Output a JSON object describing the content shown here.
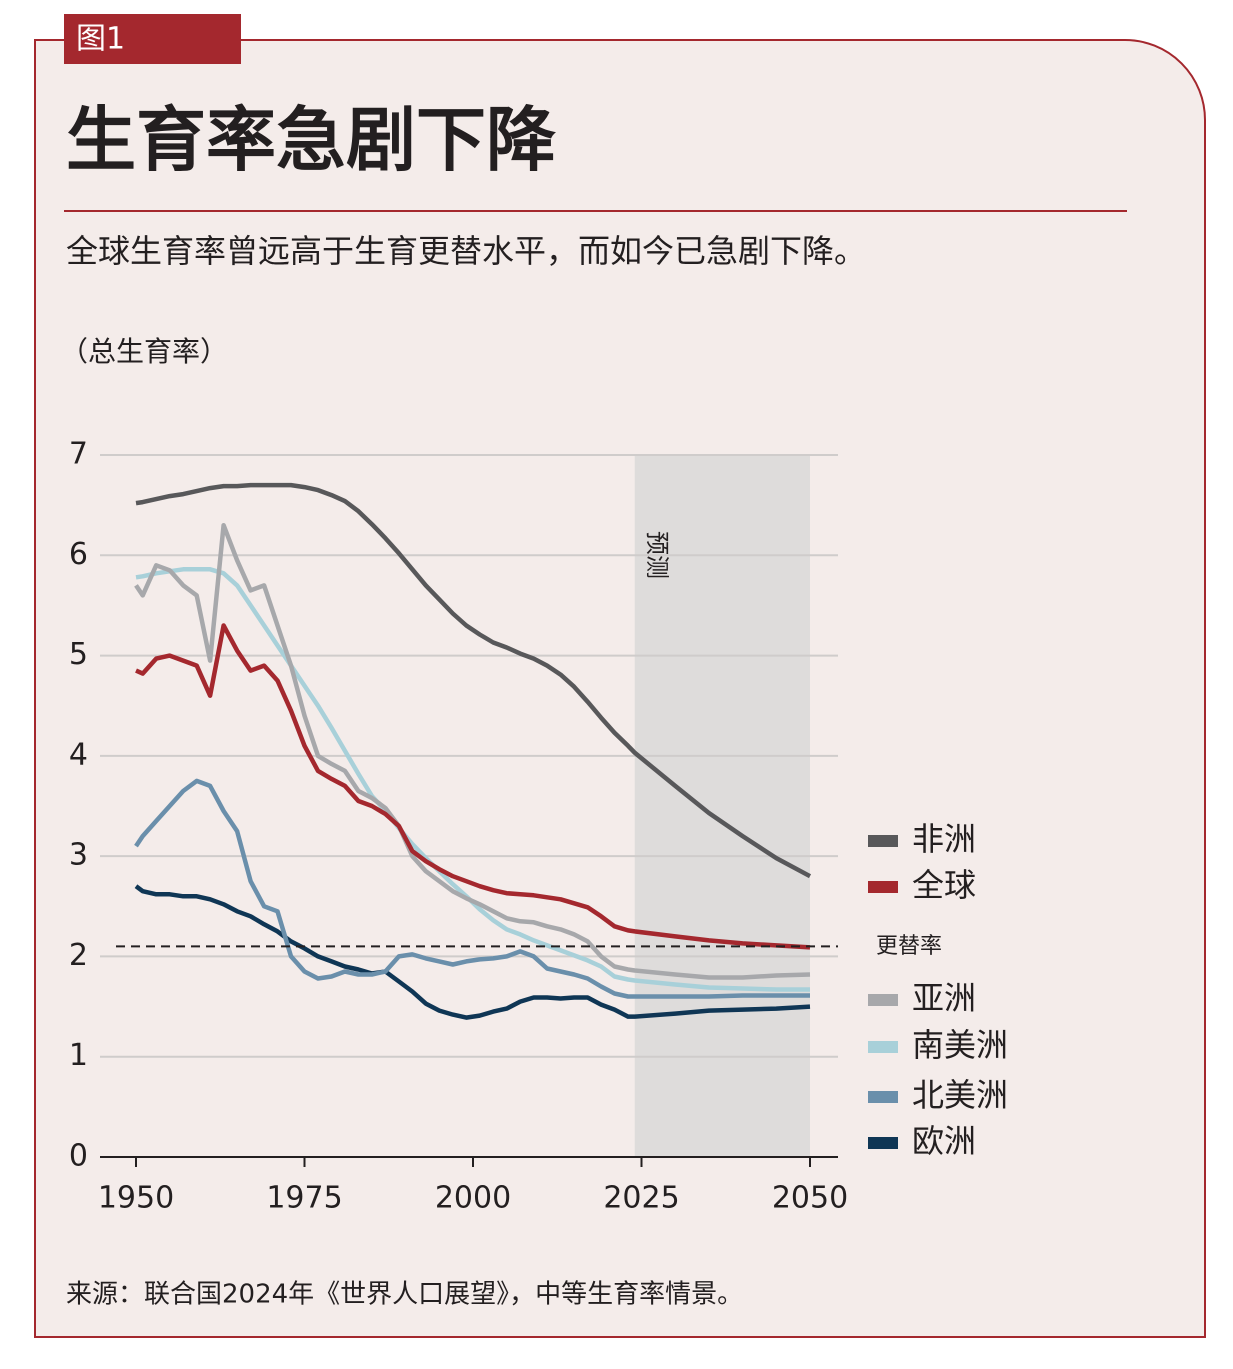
{
  "figure_tag": "图1",
  "chart_data": {
    "type": "line",
    "title": "生育率急剧下降",
    "subtitle": "全球生育率曾远高于生育更替水平，而如今已急剧下降。",
    "y_label": "（总生育率）",
    "source": "来源：联合国2024年《世界人口展望》，中等生育率情景。",
    "x": [
      1950,
      1951,
      1953,
      1955,
      1957,
      1959,
      1961,
      1963,
      1965,
      1967,
      1969,
      1971,
      1973,
      1975,
      1977,
      1979,
      1981,
      1983,
      1985,
      1987,
      1989,
      1991,
      1993,
      1995,
      1997,
      1999,
      2001,
      2003,
      2005,
      2007,
      2009,
      2011,
      2013,
      2015,
      2017,
      2019,
      2021,
      2023,
      2024,
      2030,
      2035,
      2040,
      2045,
      2050
    ],
    "series": [
      {
        "name": "非洲",
        "color": "#58585a",
        "values": [
          6.52,
          6.53,
          6.56,
          6.59,
          6.61,
          6.64,
          6.67,
          6.69,
          6.69,
          6.7,
          6.7,
          6.7,
          6.7,
          6.68,
          6.65,
          6.6,
          6.54,
          6.44,
          6.31,
          6.17,
          6.02,
          5.86,
          5.7,
          5.56,
          5.42,
          5.3,
          5.21,
          5.13,
          5.08,
          5.02,
          4.97,
          4.9,
          4.81,
          4.69,
          4.54,
          4.38,
          4.23,
          4.1,
          4.03,
          3.7,
          3.43,
          3.2,
          2.98,
          2.8
        ]
      },
      {
        "name": "全球",
        "color": "#a4282e",
        "values": [
          4.85,
          4.82,
          4.97,
          5.0,
          4.95,
          4.9,
          4.6,
          5.3,
          5.05,
          4.85,
          4.9,
          4.75,
          4.45,
          4.1,
          3.85,
          3.77,
          3.7,
          3.55,
          3.5,
          3.42,
          3.3,
          3.05,
          2.95,
          2.87,
          2.8,
          2.75,
          2.7,
          2.66,
          2.63,
          2.62,
          2.61,
          2.59,
          2.57,
          2.53,
          2.49,
          2.4,
          2.3,
          2.26,
          2.25,
          2.2,
          2.16,
          2.13,
          2.11,
          2.09
        ]
      },
      {
        "name": "亚洲",
        "color": "#a7a8ab",
        "values": [
          5.7,
          5.6,
          5.9,
          5.85,
          5.7,
          5.6,
          4.95,
          6.3,
          5.95,
          5.65,
          5.7,
          5.3,
          4.9,
          4.4,
          4.0,
          3.92,
          3.85,
          3.65,
          3.58,
          3.48,
          3.3,
          3.0,
          2.85,
          2.75,
          2.65,
          2.58,
          2.52,
          2.45,
          2.38,
          2.35,
          2.34,
          2.3,
          2.27,
          2.22,
          2.15,
          2.0,
          1.9,
          1.87,
          1.86,
          1.82,
          1.79,
          1.79,
          1.81,
          1.82
        ]
      },
      {
        "name": "南美洲",
        "color": "#a8d0d9",
        "values": [
          5.78,
          5.79,
          5.82,
          5.84,
          5.86,
          5.86,
          5.86,
          5.82,
          5.7,
          5.5,
          5.3,
          5.1,
          4.9,
          4.7,
          4.5,
          4.28,
          4.05,
          3.82,
          3.6,
          3.45,
          3.28,
          3.12,
          2.98,
          2.85,
          2.72,
          2.6,
          2.47,
          2.36,
          2.27,
          2.22,
          2.16,
          2.11,
          2.06,
          2.01,
          1.96,
          1.9,
          1.8,
          1.77,
          1.76,
          1.72,
          1.69,
          1.68,
          1.67,
          1.67
        ]
      },
      {
        "name": "北美洲",
        "color": "#6a8fab",
        "values": [
          3.1,
          3.2,
          3.35,
          3.5,
          3.65,
          3.75,
          3.7,
          3.45,
          3.25,
          2.75,
          2.5,
          2.45,
          2.0,
          1.85,
          1.78,
          1.8,
          1.85,
          1.82,
          1.82,
          1.85,
          2.0,
          2.02,
          1.98,
          1.95,
          1.92,
          1.95,
          1.97,
          1.98,
          2.0,
          2.05,
          2.0,
          1.88,
          1.85,
          1.82,
          1.78,
          1.7,
          1.63,
          1.6,
          1.6,
          1.6,
          1.6,
          1.61,
          1.61,
          1.61
        ]
      },
      {
        "name": "欧洲",
        "color": "#0f3655",
        "values": [
          2.7,
          2.65,
          2.62,
          2.62,
          2.6,
          2.6,
          2.57,
          2.52,
          2.45,
          2.4,
          2.32,
          2.25,
          2.15,
          2.08,
          2.0,
          1.95,
          1.9,
          1.87,
          1.83,
          1.85,
          1.75,
          1.65,
          1.53,
          1.46,
          1.42,
          1.39,
          1.41,
          1.45,
          1.48,
          1.55,
          1.59,
          1.59,
          1.58,
          1.59,
          1.59,
          1.52,
          1.47,
          1.4,
          1.4,
          1.43,
          1.46,
          1.47,
          1.48,
          1.5
        ]
      }
    ],
    "reference_line": {
      "value": 2.1,
      "label": "更替率"
    },
    "forecast": {
      "start": 2024,
      "end": 2050,
      "label": "预测"
    },
    "xlim": [
      1950,
      2050
    ],
    "xticks": [
      1950,
      1975,
      2000,
      2025,
      2050
    ],
    "ylim": [
      0,
      7
    ],
    "yticks": [
      0,
      1,
      2,
      3,
      4,
      5,
      6,
      7
    ],
    "grid": true,
    "legend": "right"
  }
}
